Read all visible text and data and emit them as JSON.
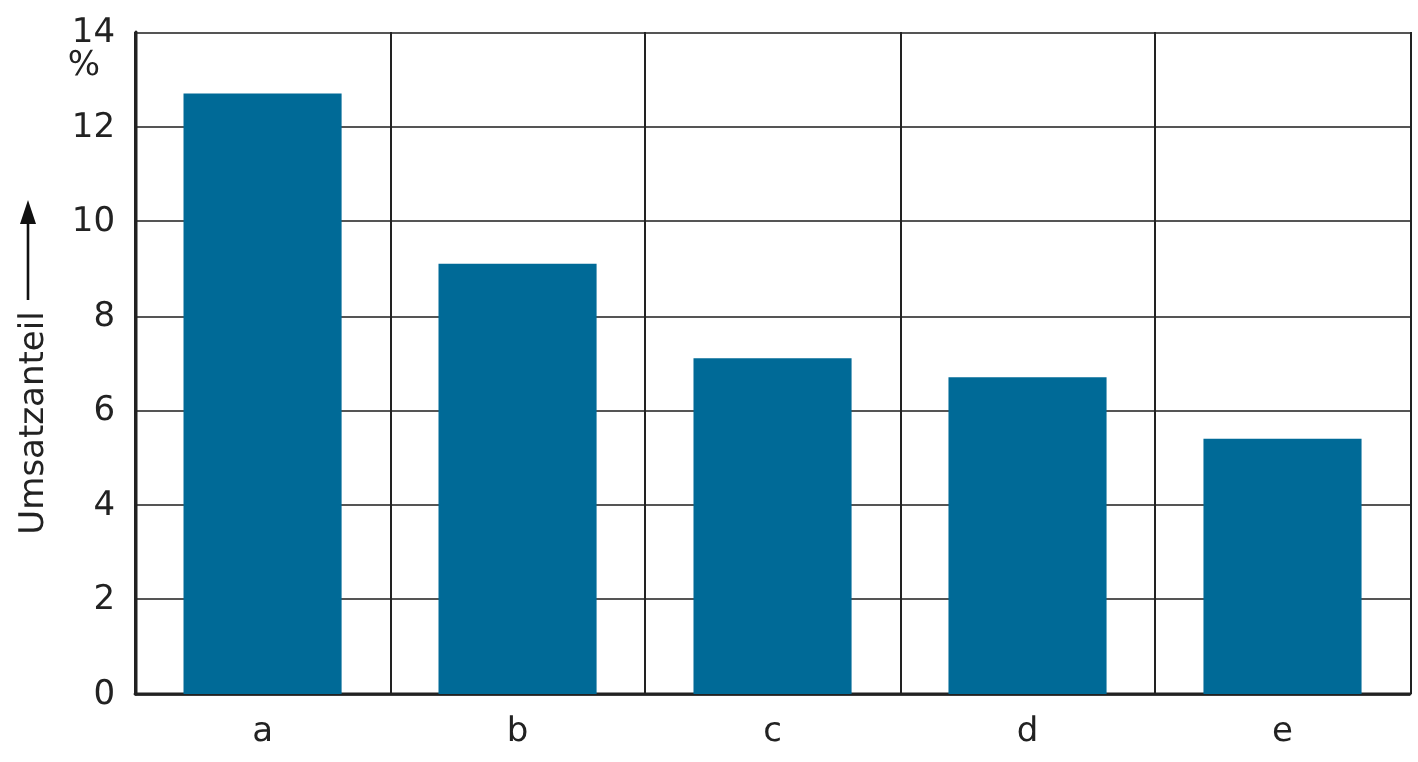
{
  "chart_data": {
    "type": "bar",
    "ylabel": "Umsatzanteil",
    "annotations": [
      "%"
    ],
    "categories": [
      "a",
      "b",
      "c",
      "d",
      "e"
    ],
    "values": [
      12.7,
      9.1,
      7.1,
      6.7,
      5.4
    ],
    "color": "#006a97",
    "ylim": [
      0,
      14
    ],
    "yticks": [
      0,
      2,
      4,
      6,
      8,
      10,
      12,
      14
    ],
    "grid": true
  }
}
